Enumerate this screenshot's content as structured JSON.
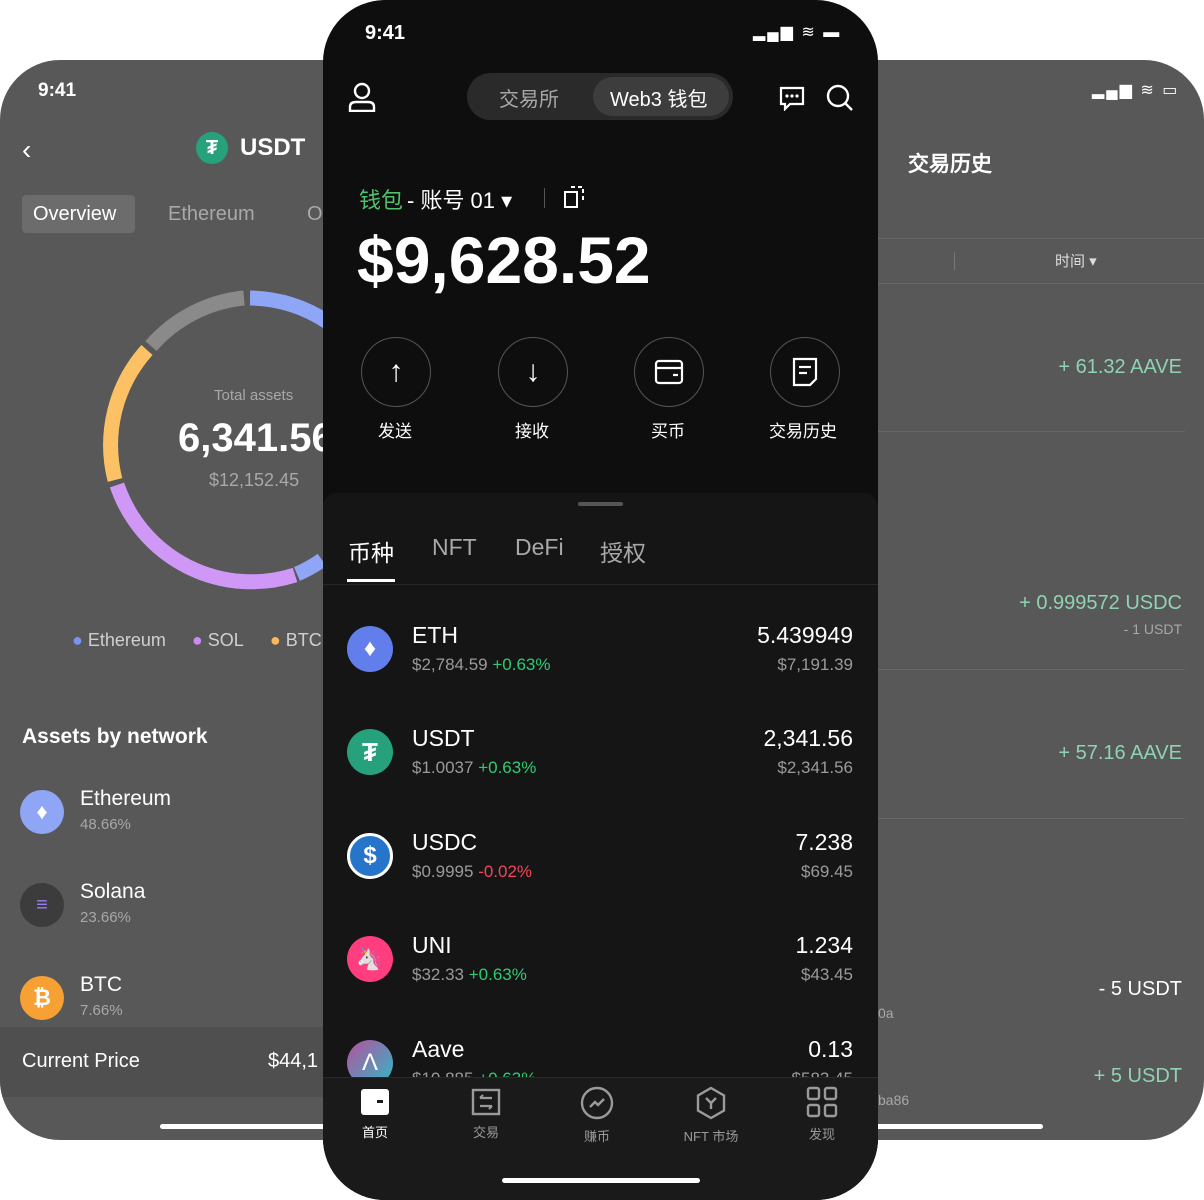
{
  "left_phone": {
    "time": "9:41",
    "title": "USDT",
    "tabs": [
      "Overview",
      "Ethereum",
      "O"
    ],
    "total_label": "Total assets",
    "total_amount": "6,341.56",
    "total_usd": "$12,152.45",
    "legend": [
      {
        "label": "Ethereum",
        "color": "#7b92f5"
      },
      {
        "label": "SOL",
        "color": "#c98bf5"
      },
      {
        "label": "BTC",
        "color": "#f9b95a"
      }
    ],
    "donut": [
      {
        "name": "Ethereum",
        "percent": 48.66,
        "color": "#8fa6f7"
      },
      {
        "name": "SOL",
        "percent": 23.66,
        "color": "#cf98f7"
      },
      {
        "name": "BTC",
        "percent": 7.66,
        "color": "#fbc164"
      },
      {
        "name": "Other",
        "percent": 20.02,
        "color": "#8a8a8a"
      }
    ],
    "section_title": "Assets by network",
    "networks": [
      {
        "name": "Ethereum",
        "percent": "48.66%"
      },
      {
        "name": "Solana",
        "percent": "23.66%"
      },
      {
        "name": "BTC",
        "percent": "7.66%"
      }
    ],
    "current_price_label": "Current Price",
    "current_price_value": "$44,1"
  },
  "center_phone": {
    "time": "9:41",
    "segments": [
      "交易所",
      "Web3 钱包"
    ],
    "wallet_label": "钱包",
    "account_label": "- 账号 01",
    "balance": "$9,628.52",
    "actions": [
      "发送",
      "接收",
      "买币",
      "交易历史"
    ],
    "asset_tabs": [
      "币种",
      "NFT",
      "DeFi",
      "授权"
    ],
    "tokens": [
      {
        "symbol": "ETH",
        "price": "$2,784.59",
        "change": "+0.63%",
        "amount": "5.439949",
        "value": "$7,191.39"
      },
      {
        "symbol": "USDT",
        "price": "$1.0037",
        "change": "+0.63%",
        "amount": "2,341.56",
        "value": "$2,341.56"
      },
      {
        "symbol": "USDC",
        "price": "$0.9995",
        "change": "-0.02%",
        "amount": "7.238",
        "value": "$69.45"
      },
      {
        "symbol": "UNI",
        "price": "$32.33",
        "change": "+0.63%",
        "amount": "1.234",
        "value": "$43.45"
      },
      {
        "symbol": "Aave",
        "price": "$10.885",
        "change": "+0.63%",
        "amount": "0.13",
        "value": "$583.45"
      }
    ],
    "nav": [
      "首页",
      "交易",
      "赚币",
      "NFT 市场",
      "发现"
    ],
    "colors": {
      "green": "#2ecc71",
      "red": "#f0475a",
      "wallet_green": "#4fc16b"
    }
  },
  "right_phone": {
    "title": "交易历史",
    "filter": "时间",
    "rows": [
      {
        "amount": "+ 61.32 AAVE"
      },
      {
        "amount": "+ 0.999572 USDC",
        "sub": "- 1 USDT"
      },
      {
        "amount": "+ 57.16 AAVE"
      },
      {
        "amount": "- 5 USDT",
        "fragment": "0a"
      },
      {
        "amount": "+ 5 USDT",
        "fragment": "ba86"
      }
    ]
  }
}
